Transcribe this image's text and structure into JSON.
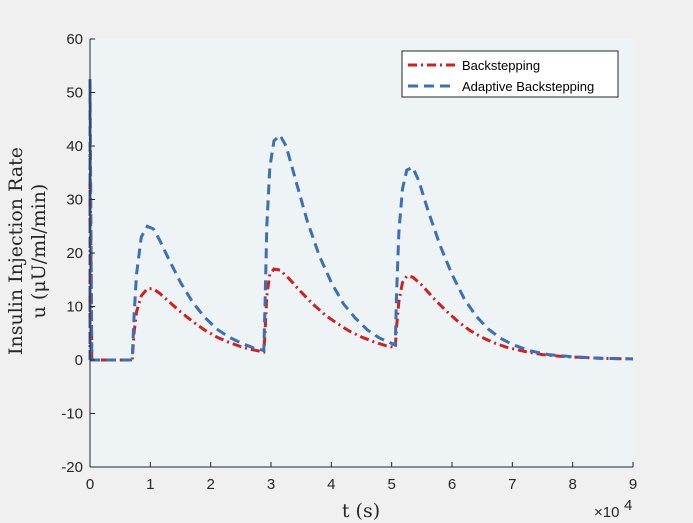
{
  "chart_data": {
    "type": "line",
    "ylabel_line1": "Insulin Injection Rate",
    "ylabel_line2": "u (μU/ml/min)",
    "xlabel": "t (s)",
    "x_multiplier_label": "×10",
    "x_multiplier_exponent": "4",
    "xlim": [
      0,
      90000
    ],
    "ylim": [
      -20,
      60
    ],
    "xticks": [
      0,
      10000,
      20000,
      30000,
      40000,
      50000,
      60000,
      70000,
      80000,
      90000
    ],
    "xtick_labels": [
      "0",
      "1",
      "2",
      "3",
      "4",
      "5",
      "6",
      "7",
      "8",
      "9"
    ],
    "yticks": [
      -20,
      -10,
      0,
      10,
      20,
      30,
      40,
      50,
      60
    ],
    "ytick_labels": [
      "-20",
      "-10",
      "0",
      "10",
      "20",
      "30",
      "40",
      "50",
      "60"
    ],
    "grid": false,
    "legend_position": "top-right",
    "colors": {
      "plot_bg": "#eef4f5",
      "figure_bg": "#f0f0f0"
    },
    "series": [
      {
        "name": "Backstepping",
        "color": "#cc2222",
        "dash": "dash-dot",
        "points": [
          [
            0,
            0
          ],
          [
            1,
            40
          ],
          [
            300,
            0
          ],
          [
            7000,
            0
          ],
          [
            7300,
            5
          ],
          [
            7700,
            9
          ],
          [
            8500,
            12
          ],
          [
            9500,
            13.3
          ],
          [
            10500,
            13.3
          ],
          [
            11500,
            12.5
          ],
          [
            13000,
            11
          ],
          [
            15000,
            9
          ],
          [
            17000,
            7.2
          ],
          [
            19000,
            5.6
          ],
          [
            21000,
            4.3
          ],
          [
            23000,
            3.3
          ],
          [
            25000,
            2.5
          ],
          [
            27000,
            1.9
          ],
          [
            28800,
            1.5
          ],
          [
            29000,
            5
          ],
          [
            29300,
            12
          ],
          [
            29800,
            16
          ],
          [
            30500,
            17
          ],
          [
            31500,
            16.8
          ],
          [
            33000,
            15.2
          ],
          [
            35000,
            12.7
          ],
          [
            37000,
            10.4
          ],
          [
            39000,
            8.4
          ],
          [
            41000,
            6.8
          ],
          [
            43000,
            5.4
          ],
          [
            45000,
            4.3
          ],
          [
            47000,
            3.4
          ],
          [
            49000,
            2.7
          ],
          [
            50600,
            2.3
          ],
          [
            50800,
            6
          ],
          [
            51200,
            11
          ],
          [
            51800,
            14.5
          ],
          [
            52500,
            15.7
          ],
          [
            53500,
            15.5
          ],
          [
            55000,
            14
          ],
          [
            57000,
            11.5
          ],
          [
            59000,
            9.2
          ],
          [
            61000,
            7.2
          ],
          [
            63000,
            5.5
          ],
          [
            65000,
            4.2
          ],
          [
            67000,
            3.2
          ],
          [
            69000,
            2.4
          ],
          [
            72000,
            1.6
          ],
          [
            75000,
            1.0
          ],
          [
            78000,
            0.7
          ],
          [
            81000,
            0.5
          ],
          [
            85000,
            0.3
          ],
          [
            90000,
            0.2
          ]
        ]
      },
      {
        "name": "Adaptive Backstepping",
        "color": "#3c6fb3",
        "dash": "dashed",
        "points": [
          [
            0,
            0
          ],
          [
            1,
            52.5
          ],
          [
            300,
            0
          ],
          [
            7000,
            0
          ],
          [
            7300,
            8
          ],
          [
            7700,
            16
          ],
          [
            8500,
            23
          ],
          [
            9500,
            25
          ],
          [
            10500,
            24.5
          ],
          [
            11500,
            22.5
          ],
          [
            13000,
            19
          ],
          [
            15000,
            14.5
          ],
          [
            17000,
            10.8
          ],
          [
            19000,
            8
          ],
          [
            21000,
            5.8
          ],
          [
            23000,
            4.3
          ],
          [
            25000,
            3.2
          ],
          [
            27000,
            2.3
          ],
          [
            28800,
            1.8
          ],
          [
            29000,
            10
          ],
          [
            29300,
            25
          ],
          [
            29800,
            36
          ],
          [
            30500,
            41
          ],
          [
            31500,
            42
          ],
          [
            32500,
            40
          ],
          [
            34000,
            34
          ],
          [
            36000,
            26
          ],
          [
            38000,
            19.5
          ],
          [
            40000,
            14.5
          ],
          [
            42000,
            10.5
          ],
          [
            44000,
            7.8
          ],
          [
            46000,
            5.6
          ],
          [
            48000,
            4.1
          ],
          [
            50600,
            2.8
          ],
          [
            50800,
            12
          ],
          [
            51200,
            24
          ],
          [
            51800,
            32
          ],
          [
            52500,
            35.5
          ],
          [
            53500,
            36
          ],
          [
            54500,
            33.5
          ],
          [
            56000,
            28
          ],
          [
            58000,
            21.5
          ],
          [
            60000,
            16
          ],
          [
            62000,
            11.5
          ],
          [
            64000,
            8.2
          ],
          [
            66000,
            5.8
          ],
          [
            68000,
            4.1
          ],
          [
            70000,
            2.9
          ],
          [
            73000,
            1.7
          ],
          [
            76000,
            1.0
          ],
          [
            80000,
            0.6
          ],
          [
            85000,
            0.3
          ],
          [
            90000,
            0.2
          ]
        ]
      }
    ]
  }
}
